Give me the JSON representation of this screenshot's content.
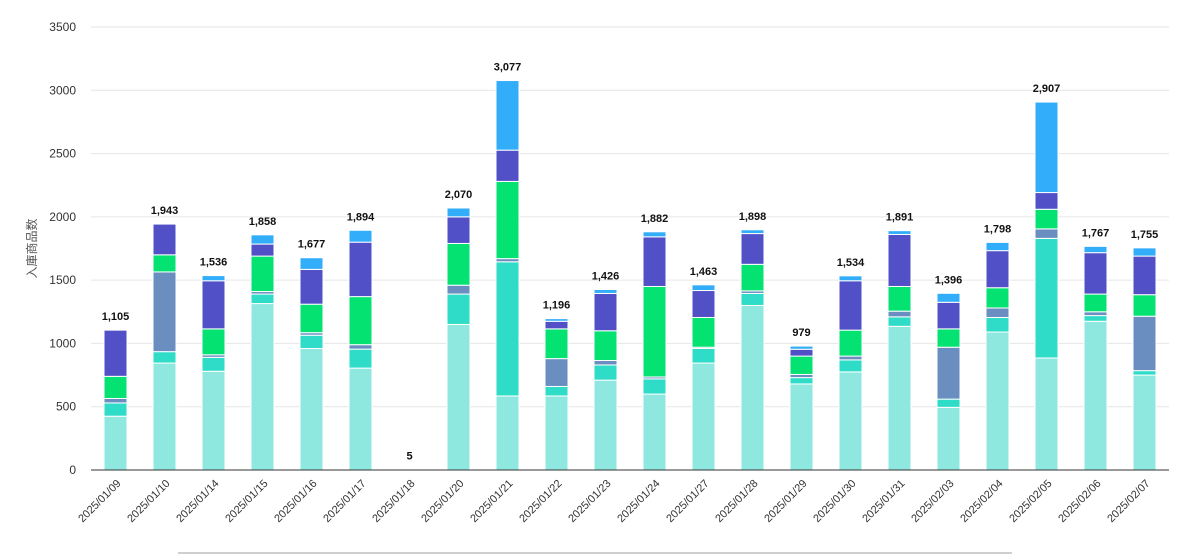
{
  "chart_data": {
    "type": "bar",
    "stacked": true,
    "ylabel": "入庫商品数",
    "ylim": [
      0,
      3500
    ],
    "yticks": [
      0,
      500,
      1000,
      1500,
      2000,
      2500,
      3000,
      3500
    ],
    "grid": true,
    "categories": [
      "2025/01/09",
      "2025/01/10",
      "2025/01/14",
      "2025/01/15",
      "2025/01/16",
      "2025/01/17",
      "2025/01/18",
      "2025/01/20",
      "2025/01/21",
      "2025/01/22",
      "2025/01/23",
      "2025/01/24",
      "2025/01/27",
      "2025/01/28",
      "2025/01/29",
      "2025/01/30",
      "2025/01/31",
      "2025/02/03",
      "2025/02/04",
      "2025/02/05",
      "2025/02/06",
      "2025/02/07"
    ],
    "totals": [
      "1,105",
      "1,943",
      "1,536",
      "1,858",
      "1,677",
      "1,894",
      "5",
      "2,070",
      "3,077",
      "1,196",
      "1,426",
      "1,882",
      "1,463",
      "1,898",
      "979",
      "1,534",
      "1,891",
      "1,396",
      "1,798",
      "2,907",
      "1,767",
      "1,755"
    ],
    "series": [
      {
        "color": "#8fe8df",
        "values": [
          425,
          845,
          780,
          1315,
          960,
          805,
          0,
          1150,
          585,
          585,
          710,
          600,
          845,
          1300,
          680,
          775,
          1135,
          495,
          1090,
          885,
          1175,
          750
        ]
      },
      {
        "color": "#2edcc7",
        "values": [
          105,
          90,
          110,
          75,
          105,
          150,
          0,
          240,
          1060,
          75,
          120,
          120,
          115,
          95,
          50,
          95,
          75,
          65,
          115,
          945,
          45,
          35
        ]
      },
      {
        "color": "#6a8ec0",
        "values": [
          35,
          630,
          20,
          20,
          20,
          35,
          0,
          70,
          25,
          220,
          35,
          15,
          10,
          20,
          25,
          30,
          45,
          410,
          75,
          75,
          30,
          430
        ]
      },
      {
        "color": "#04e272",
        "values": [
          175,
          135,
          205,
          280,
          225,
          380,
          5,
          330,
          610,
          235,
          235,
          715,
          235,
          210,
          145,
          205,
          195,
          145,
          160,
          155,
          140,
          170
        ]
      },
      {
        "color": "#5150c6",
        "values": [
          365,
          243,
          380,
          95,
          275,
          430,
          0,
          210,
          247,
          60,
          295,
          392,
          213,
          243,
          54,
          390,
          411,
          210,
          293,
          132,
          327,
          305
        ]
      },
      {
        "color": "#31adf9",
        "values": [
          0,
          0,
          41,
          73,
          92,
          94,
          0,
          70,
          550,
          21,
          31,
          40,
          45,
          30,
          25,
          39,
          30,
          71,
          65,
          715,
          50,
          65
        ]
      }
    ]
  }
}
